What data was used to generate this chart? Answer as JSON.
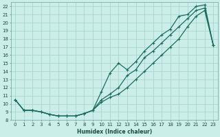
{
  "xlabel": "Humidex (Indice chaleur)",
  "bg_color": "#cceee8",
  "grid_color": "#aad4ce",
  "line_color": "#1a6b5e",
  "xlim": [
    -0.5,
    23.5
  ],
  "ylim": [
    8,
    22.5
  ],
  "xticks": [
    0,
    1,
    2,
    3,
    4,
    5,
    6,
    7,
    8,
    9,
    10,
    11,
    12,
    13,
    14,
    15,
    16,
    17,
    18,
    19,
    20,
    21,
    22,
    23
  ],
  "yticks": [
    8,
    9,
    10,
    11,
    12,
    13,
    14,
    15,
    16,
    17,
    18,
    19,
    20,
    21,
    22
  ],
  "line1_x": [
    0,
    1,
    2,
    3,
    4,
    5,
    6,
    7,
    8,
    9,
    10,
    11,
    12,
    13,
    14,
    15,
    16,
    17,
    18,
    19,
    20,
    21,
    22,
    23
  ],
  "line1_y": [
    10.5,
    9.2,
    9.2,
    9.0,
    8.7,
    8.5,
    8.5,
    8.5,
    8.8,
    9.2,
    10.5,
    11.2,
    12.0,
    13.5,
    14.2,
    15.7,
    16.5,
    17.5,
    18.5,
    19.5,
    20.5,
    21.5,
    21.8,
    17.2
  ],
  "line2_x": [
    0,
    1,
    2,
    3,
    4,
    5,
    6,
    7,
    8,
    9,
    10,
    11,
    12,
    13,
    14,
    15,
    16,
    17,
    18,
    19,
    20,
    21,
    22,
    23
  ],
  "line2_y": [
    10.5,
    9.2,
    9.2,
    9.0,
    8.7,
    8.5,
    8.5,
    8.5,
    8.8,
    9.2,
    11.5,
    13.8,
    15.0,
    14.2,
    15.2,
    16.5,
    17.5,
    18.5,
    19.2,
    20.8,
    21.0,
    22.0,
    22.2,
    17.2
  ],
  "line3_x": [
    0,
    1,
    2,
    3,
    4,
    5,
    6,
    7,
    8,
    9,
    10,
    11,
    12,
    13,
    14,
    15,
    16,
    17,
    18,
    19,
    20,
    21,
    22,
    23
  ],
  "line3_y": [
    10.5,
    9.2,
    9.2,
    9.0,
    8.7,
    8.5,
    8.5,
    8.5,
    8.8,
    9.2,
    10.2,
    10.8,
    11.2,
    12.0,
    13.0,
    14.0,
    15.0,
    16.0,
    17.0,
    18.0,
    19.5,
    20.8,
    21.5,
    17.2
  ],
  "marker": "+",
  "markersize": 3,
  "linewidth": 0.9,
  "tick_labelsize": 5,
  "xlabel_fontsize": 5.5,
  "xlabel_color": "#1a4a44",
  "spine_color": "#7aada8"
}
